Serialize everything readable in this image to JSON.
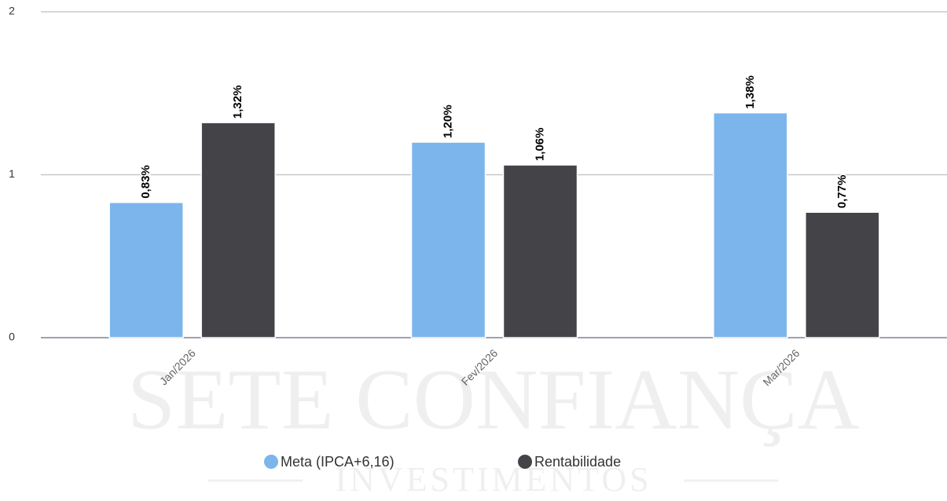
{
  "chart_data": {
    "type": "bar",
    "watermark": {
      "title": "SETE CONFIANÇA",
      "subtitle": "INVESTIMENTOS"
    },
    "categories": [
      "Jan/2026",
      "Fev/2026",
      "Mar/2026"
    ],
    "series": [
      {
        "name": "Meta (IPCA+6,16)",
        "color": "#7cb5ec",
        "values": [
          0.83,
          1.2,
          1.38
        ],
        "value_labels": [
          "0,83%",
          "1,20%",
          "1,38%"
        ]
      },
      {
        "name": "Rentabilidade",
        "color": "#434348",
        "values": [
          1.32,
          1.06,
          0.77
        ],
        "value_labels": [
          "1,32%",
          "1,06%",
          "0,77%"
        ]
      }
    ],
    "ylim": [
      0,
      2
    ],
    "yticks": [
      0,
      1,
      2
    ],
    "grid": true,
    "legend": "bottom"
  }
}
